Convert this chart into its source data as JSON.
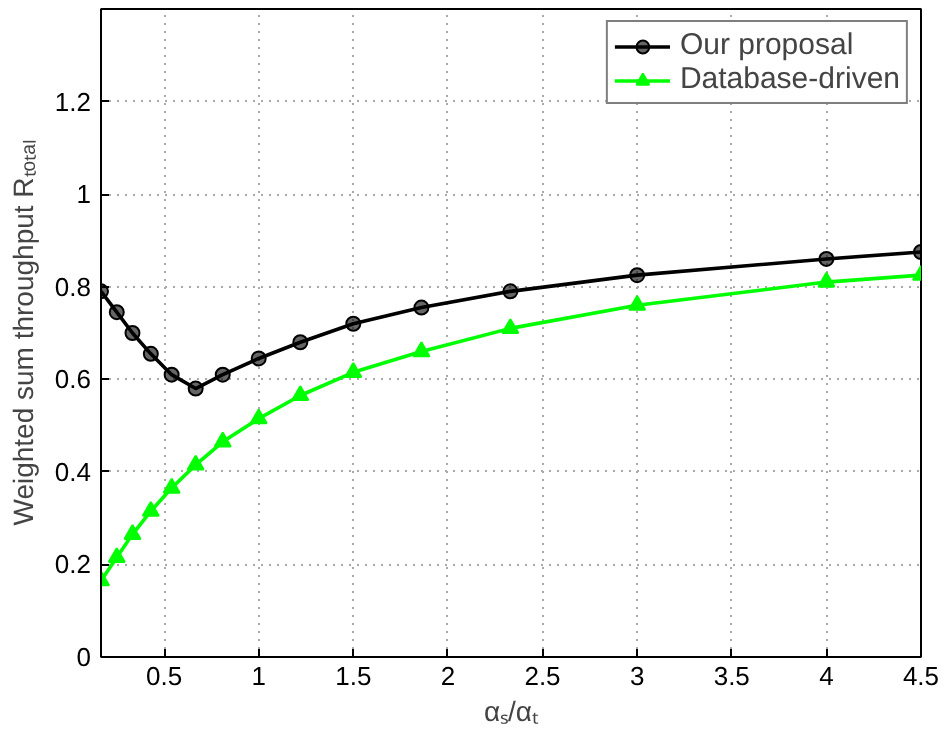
{
  "chart_data": {
    "type": "line",
    "xlabel": "αₛ/αₜ",
    "ylabel": "Weighted sum throughput Rₜₒₜₐₗ",
    "xlim": [
      0.1667,
      4.5
    ],
    "ylim": [
      0,
      1.4
    ],
    "xticks": [
      0.5,
      1,
      1.5,
      2,
      2.5,
      3,
      3.5,
      4,
      4.5
    ],
    "yticks": [
      0,
      0.2,
      0.4,
      0.6,
      0.8,
      1,
      1.2
    ],
    "grid": true,
    "legend": "top right",
    "line_style": "solid",
    "series": [
      {
        "name": "Our proposal",
        "color": "#000000",
        "marker": "circle",
        "x": [
          0.1667,
          0.25,
          0.333,
          0.43,
          0.54,
          0.667,
          0.81,
          1.0,
          1.22,
          1.5,
          1.86,
          2.33,
          3,
          4,
          4.5
        ],
        "values": [
          0.79,
          0.745,
          0.7,
          0.655,
          0.61,
          0.58,
          0.61,
          0.645,
          0.68,
          0.72,
          0.755,
          0.79,
          0.825,
          0.86,
          0.875
        ]
      },
      {
        "name": "Database-driven",
        "color": "#00ff00",
        "marker": "triangle",
        "x": [
          0.1667,
          0.25,
          0.333,
          0.43,
          0.54,
          0.667,
          0.81,
          1.0,
          1.22,
          1.5,
          1.86,
          2.33,
          3,
          4,
          4.5
        ],
        "values": [
          0.165,
          0.215,
          0.265,
          0.315,
          0.365,
          0.415,
          0.465,
          0.515,
          0.565,
          0.615,
          0.66,
          0.71,
          0.76,
          0.81,
          0.825
        ]
      }
    ]
  }
}
